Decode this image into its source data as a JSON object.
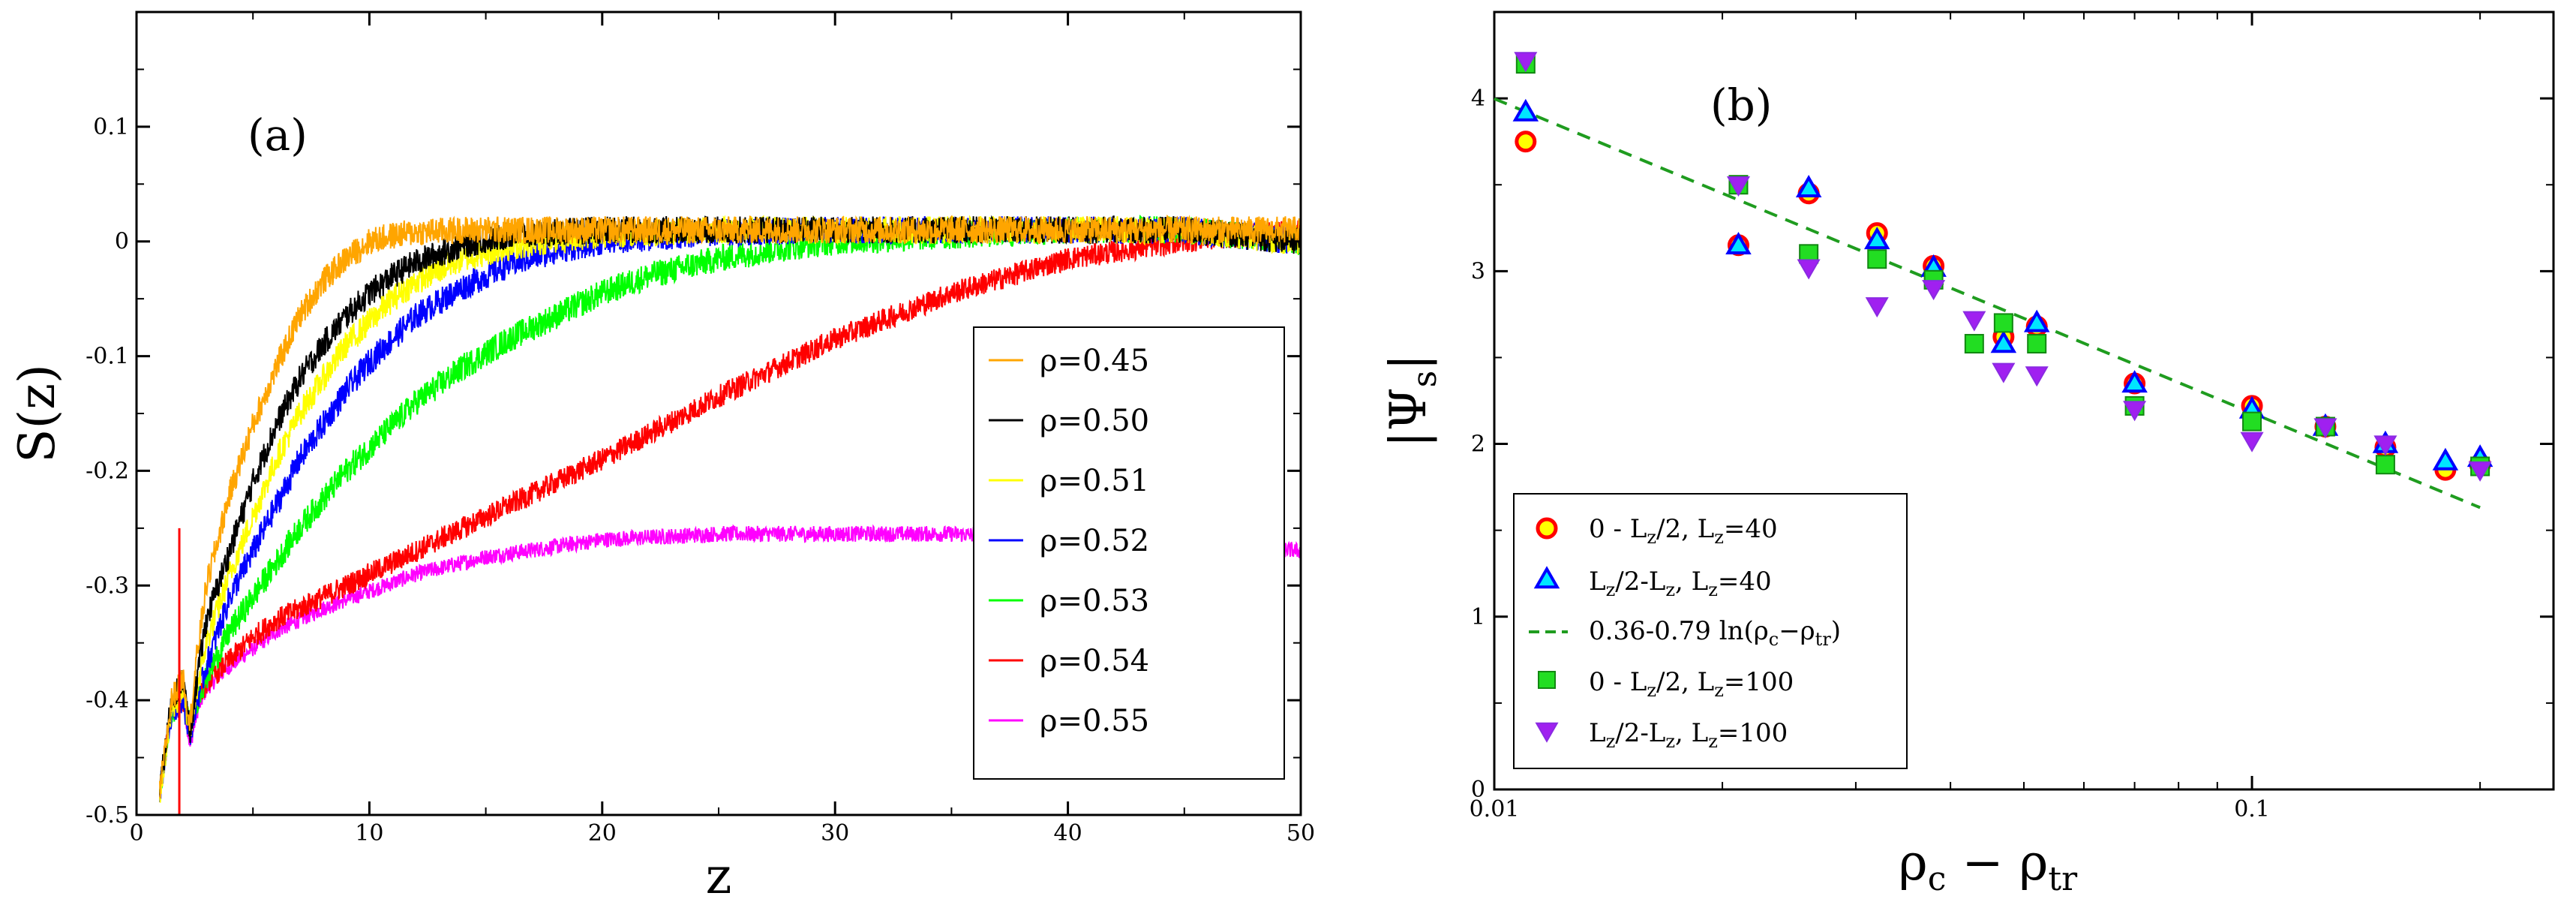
{
  "chart_data": [
    {
      "type": "line",
      "panel_label": "(a)",
      "xlabel": "z",
      "ylabel": "S(z)",
      "xlim": [
        0,
        50
      ],
      "ylim": [
        -0.5,
        0.2
      ],
      "xticks": [
        "0",
        "10",
        "20",
        "30",
        "40",
        "50"
      ],
      "yticks": [
        "-0.5",
        "-0.4",
        "-0.3",
        "-0.2",
        "-0.1",
        "0",
        "0.1"
      ],
      "legend_position": "right-middle",
      "series": [
        {
          "name": "ρ=0.45",
          "color": "#FFA500",
          "noise": 0.012,
          "x": [
            1.0,
            1.5,
            2.0,
            2.3,
            2.6,
            3.0,
            3.5,
            4,
            5,
            6,
            7,
            8,
            9,
            10,
            11,
            12,
            14,
            16,
            18,
            20,
            25,
            30,
            35,
            40,
            45,
            50
          ],
          "y": [
            -0.48,
            -0.4,
            -0.38,
            -0.42,
            -0.36,
            -0.3,
            -0.26,
            -0.22,
            -0.16,
            -0.11,
            -0.065,
            -0.035,
            -0.015,
            0.0,
            0.005,
            0.008,
            0.01,
            0.01,
            0.01,
            0.01,
            0.01,
            0.01,
            0.01,
            0.01,
            0.01,
            0.01
          ]
        },
        {
          "name": "ρ=0.50",
          "color": "#000000",
          "noise": 0.012,
          "x": [
            1.0,
            1.5,
            2.0,
            2.3,
            2.6,
            3.0,
            3.5,
            4,
            5,
            6,
            7,
            8,
            9,
            10,
            11,
            12,
            14,
            16,
            18,
            20,
            25,
            30,
            35,
            40,
            45,
            50
          ],
          "y": [
            -0.48,
            -0.4,
            -0.38,
            -0.43,
            -0.38,
            -0.33,
            -0.3,
            -0.27,
            -0.21,
            -0.16,
            -0.12,
            -0.09,
            -0.065,
            -0.045,
            -0.03,
            -0.018,
            -0.003,
            0.005,
            0.008,
            0.01,
            0.01,
            0.01,
            0.01,
            0.01,
            0.01,
            0.0
          ]
        },
        {
          "name": "ρ=0.51",
          "color": "#FFFF00",
          "noise": 0.012,
          "x": [
            1.0,
            1.5,
            2.0,
            2.3,
            2.6,
            3.0,
            3.5,
            4,
            5,
            6,
            7,
            8,
            9,
            10,
            11,
            12,
            14,
            16,
            18,
            20,
            25,
            30,
            35,
            40,
            45,
            50
          ],
          "y": [
            -0.48,
            -0.41,
            -0.39,
            -0.43,
            -0.39,
            -0.35,
            -0.32,
            -0.29,
            -0.24,
            -0.19,
            -0.15,
            -0.12,
            -0.09,
            -0.07,
            -0.05,
            -0.035,
            -0.015,
            -0.005,
            0.002,
            0.006,
            0.01,
            0.01,
            0.01,
            0.01,
            0.01,
            0.0
          ]
        },
        {
          "name": "ρ=0.52",
          "color": "#0000FF",
          "noise": 0.012,
          "x": [
            1.0,
            1.5,
            2.0,
            2.3,
            2.6,
            3.0,
            3.5,
            4,
            5,
            6,
            7,
            8,
            9,
            10,
            11,
            12,
            14,
            16,
            18,
            20,
            25,
            30,
            35,
            40,
            45,
            50
          ],
          "y": [
            -0.48,
            -0.41,
            -0.4,
            -0.43,
            -0.4,
            -0.37,
            -0.34,
            -0.31,
            -0.27,
            -0.23,
            -0.19,
            -0.16,
            -0.13,
            -0.105,
            -0.085,
            -0.065,
            -0.04,
            -0.02,
            -0.008,
            0.0,
            0.008,
            0.01,
            0.01,
            0.01,
            0.01,
            0.0
          ]
        },
        {
          "name": "ρ=0.53",
          "color": "#00FF00",
          "noise": 0.012,
          "x": [
            1.0,
            1.5,
            2.0,
            2.3,
            2.6,
            3.0,
            3.5,
            4,
            5,
            6,
            7,
            8,
            9,
            10,
            11,
            12,
            14,
            16,
            18,
            20,
            22,
            25,
            28,
            30,
            35,
            40,
            45,
            50
          ],
          "y": [
            -0.48,
            -0.41,
            -0.4,
            -0.42,
            -0.4,
            -0.38,
            -0.36,
            -0.34,
            -0.31,
            -0.28,
            -0.25,
            -0.225,
            -0.2,
            -0.18,
            -0.16,
            -0.14,
            -0.11,
            -0.085,
            -0.065,
            -0.045,
            -0.03,
            -0.015,
            -0.005,
            0.0,
            0.005,
            0.01,
            0.01,
            0.0
          ]
        },
        {
          "name": "ρ=0.54",
          "color": "#FF0000",
          "noise": 0.01,
          "x": [
            1.0,
            1.5,
            2.0,
            2.3,
            2.6,
            3.0,
            4,
            5,
            6,
            8,
            10,
            12,
            15,
            20,
            25,
            30,
            35,
            40,
            45,
            50
          ],
          "y": [
            -0.48,
            -0.41,
            -0.4,
            -0.42,
            -0.4,
            -0.385,
            -0.365,
            -0.345,
            -0.33,
            -0.31,
            -0.29,
            -0.27,
            -0.24,
            -0.19,
            -0.135,
            -0.085,
            -0.045,
            -0.015,
            0.0,
            0.01
          ]
        },
        {
          "name": "ρ=0.55",
          "color": "#FF00FF",
          "noise": 0.007,
          "x": [
            1.0,
            1.5,
            2.0,
            2.3,
            2.6,
            3.0,
            4,
            5,
            6,
            8,
            10,
            12,
            15,
            20,
            25,
            30,
            35,
            40,
            45,
            50
          ],
          "y": [
            -0.48,
            -0.41,
            -0.4,
            -0.44,
            -0.41,
            -0.39,
            -0.37,
            -0.355,
            -0.34,
            -0.32,
            -0.305,
            -0.29,
            -0.275,
            -0.26,
            -0.255,
            -0.255,
            -0.255,
            -0.26,
            -0.26,
            -0.27
          ]
        }
      ],
      "vertical_marker": {
        "color": "#FF0000",
        "x": 1.0,
        "y_from": -0.5,
        "y_to": -0.25
      }
    },
    {
      "type": "scatter",
      "panel_label": "(b)",
      "xlabel": "ρ_c − ρ_tr",
      "ylabel": "|Ψ_s|",
      "xscale": "log",
      "xlim": [
        0.01,
        0.25
      ],
      "ylim": [
        0,
        4.5
      ],
      "xticks": [
        "0.01",
        "0.1"
      ],
      "yticks": [
        "0",
        "1",
        "2",
        "3",
        "4"
      ],
      "legend_position": "bottom-left",
      "fit_line": {
        "label": "0.36-0.79 ln(ρ_c−ρ_tr)",
        "a": 0.36,
        "b": -0.79,
        "color": "#1F9C1F",
        "x_range": [
          0.01,
          0.2
        ]
      },
      "series": [
        {
          "name": "0 - L_z/2,  L_z=40",
          "marker": "circle",
          "fill": "#FFFF00",
          "stroke": "#FF0000",
          "points": [
            [
              0.011,
              3.75
            ],
            [
              0.021,
              3.15
            ],
            [
              0.026,
              3.45
            ],
            [
              0.032,
              3.22
            ],
            [
              0.038,
              3.03
            ],
            [
              0.047,
              2.62
            ],
            [
              0.052,
              2.68
            ],
            [
              0.07,
              2.35
            ],
            [
              0.1,
              2.22
            ],
            [
              0.125,
              2.1
            ],
            [
              0.15,
              1.98
            ],
            [
              0.18,
              1.85
            ],
            [
              0.2,
              1.88
            ]
          ]
        },
        {
          "name": "L_z/2-L_z,  L_z=40",
          "marker": "triangle-up",
          "fill": "#00E5FF",
          "stroke": "#0000FF",
          "points": [
            [
              0.011,
              3.92
            ],
            [
              0.021,
              3.15
            ],
            [
              0.026,
              3.48
            ],
            [
              0.032,
              3.18
            ],
            [
              0.038,
              3.02
            ],
            [
              0.047,
              2.58
            ],
            [
              0.052,
              2.7
            ],
            [
              0.07,
              2.35
            ],
            [
              0.1,
              2.2
            ],
            [
              0.125,
              2.1
            ],
            [
              0.15,
              2.0
            ],
            [
              0.18,
              1.9
            ],
            [
              0.2,
              1.92
            ]
          ]
        },
        {
          "name": "0 - L_z/2,  L_z=100",
          "marker": "square",
          "fill": "#22DD22",
          "stroke": "#118811",
          "points": [
            [
              0.011,
              4.2
            ],
            [
              0.021,
              3.5
            ],
            [
              0.026,
              3.1
            ],
            [
              0.032,
              3.07
            ],
            [
              0.038,
              2.95
            ],
            [
              0.043,
              2.58
            ],
            [
              0.047,
              2.7
            ],
            [
              0.052,
              2.58
            ],
            [
              0.07,
              2.22
            ],
            [
              0.1,
              2.13
            ],
            [
              0.125,
              2.1
            ],
            [
              0.15,
              1.88
            ],
            [
              0.2,
              1.87
            ]
          ]
        },
        {
          "name": "L_z/2-L_z,  L_z=100",
          "marker": "triangle-down",
          "fill": "#A020F0",
          "stroke": "#8A2BE2",
          "points": [
            [
              0.011,
              4.22
            ],
            [
              0.021,
              3.5
            ],
            [
              0.026,
              3.02
            ],
            [
              0.032,
              2.8
            ],
            [
              0.038,
              2.9
            ],
            [
              0.043,
              2.72
            ],
            [
              0.047,
              2.42
            ],
            [
              0.052,
              2.4
            ],
            [
              0.07,
              2.2
            ],
            [
              0.1,
              2.02
            ],
            [
              0.125,
              2.1
            ],
            [
              0.15,
              2.0
            ],
            [
              0.2,
              1.85
            ]
          ]
        }
      ]
    }
  ]
}
